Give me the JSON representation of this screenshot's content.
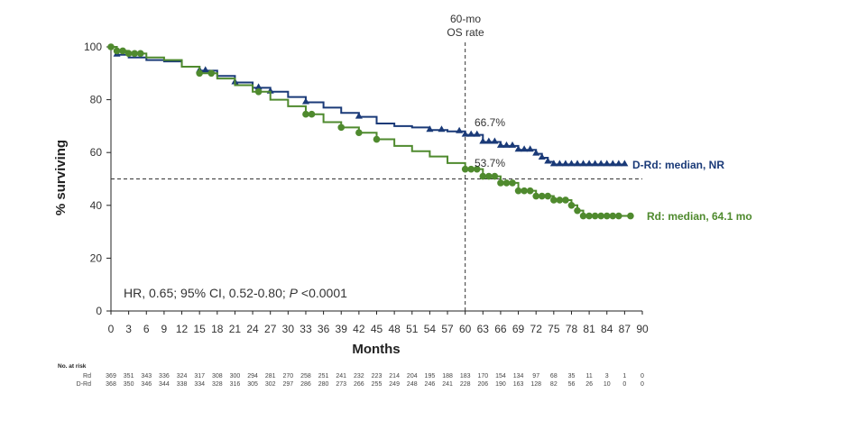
{
  "chart_data": {
    "type": "line",
    "xlabel": "Months",
    "ylabel": "% surviving",
    "xlim": [
      0,
      90
    ],
    "ylim": [
      0,
      100
    ],
    "xticks": [
      0,
      3,
      6,
      9,
      12,
      15,
      18,
      21,
      24,
      27,
      30,
      33,
      36,
      39,
      42,
      45,
      48,
      51,
      54,
      57,
      60,
      63,
      66,
      69,
      72,
      75,
      78,
      81,
      84,
      87,
      90
    ],
    "yticks": [
      0,
      20,
      40,
      60,
      80,
      100
    ],
    "legend": "right of curves",
    "reference_lines": {
      "horizontal_y": 50,
      "vertical_x": 60,
      "vertical_label_line1": "60-mo",
      "vertical_label_line2": "OS rate"
    },
    "annotations": {
      "drd_rate": "66.7%",
      "rd_rate": "53.7%",
      "hr_prefix": "HR, 0.65; 95% CI, 0.52-0.80; ",
      "hr_p": "P",
      "hr_suffix": " <0.0001"
    },
    "series": [
      {
        "name": "D-Rd: median, NR",
        "color": "#1a3a78",
        "marker": "triangle",
        "x": [
          0,
          1,
          3,
          6,
          9,
          12,
          15,
          18,
          21,
          24,
          27,
          30,
          33,
          36,
          39,
          42,
          45,
          48,
          51,
          54,
          57,
          60,
          63,
          66,
          69,
          72,
          73,
          74,
          75,
          78,
          81,
          84,
          87
        ],
        "y": [
          100,
          97,
          96,
          95,
          94.5,
          92.5,
          91,
          89,
          86.5,
          84.5,
          83,
          81,
          79,
          77,
          75,
          73.5,
          71,
          70,
          69.5,
          68.5,
          68,
          66.7,
          64,
          62.5,
          61,
          59.5,
          58,
          56.5,
          55.5,
          55.5,
          55.5,
          55.5,
          55.5
        ],
        "censor_x": [
          1,
          15,
          16,
          21,
          25,
          27,
          33,
          42,
          54,
          56,
          59,
          60,
          61,
          62,
          63,
          64,
          65,
          66,
          67,
          68,
          69,
          70,
          71,
          72,
          73,
          74,
          75,
          76,
          77,
          78,
          79,
          80,
          81,
          82,
          83,
          84,
          85,
          86,
          87
        ]
      },
      {
        "name": "Rd: median, 64.1 mo",
        "color": "#4f8a2e",
        "marker": "circle",
        "x": [
          0,
          1,
          3,
          6,
          9,
          12,
          15,
          18,
          21,
          24,
          27,
          30,
          33,
          36,
          39,
          42,
          45,
          48,
          51,
          54,
          57,
          60,
          63,
          66,
          69,
          72,
          75,
          78,
          79,
          80,
          81,
          84,
          87,
          88
        ],
        "y": [
          100,
          98.5,
          97.5,
          96,
          95,
          92.5,
          90,
          88,
          85.5,
          83,
          80,
          77.5,
          74.5,
          71.5,
          69.5,
          67.5,
          65,
          62.5,
          60.5,
          58.5,
          56,
          53.7,
          51,
          48.5,
          45.5,
          43.5,
          42,
          40,
          38,
          36,
          36,
          36,
          36,
          36
        ],
        "censor_x": [
          0,
          1,
          2,
          3,
          4,
          5,
          15,
          17,
          25,
          33,
          34,
          39,
          42,
          45,
          60,
          61,
          62,
          63,
          64,
          65,
          66,
          67,
          68,
          69,
          70,
          71,
          72,
          73,
          74,
          75,
          76,
          77,
          78,
          79,
          80,
          81,
          82,
          83,
          84,
          85,
          86,
          88
        ]
      }
    ],
    "risk_table": {
      "title": "No. at risk",
      "rows": [
        {
          "label": "Rd",
          "values": [
            "369",
            "351",
            "343",
            "336",
            "324",
            "317",
            "308",
            "300",
            "294",
            "281",
            "270",
            "258",
            "251",
            "241",
            "232",
            "223",
            "214",
            "204",
            "195",
            "188",
            "183",
            "170",
            "154",
            "134",
            "97",
            "68",
            "35",
            "11",
            "3",
            "1",
            "0"
          ]
        },
        {
          "label": "D-Rd",
          "values": [
            "368",
            "350",
            "346",
            "344",
            "338",
            "334",
            "328",
            "316",
            "305",
            "302",
            "297",
            "286",
            "280",
            "273",
            "266",
            "255",
            "249",
            "248",
            "246",
            "241",
            "228",
            "206",
            "190",
            "163",
            "128",
            "82",
            "56",
            "26",
            "10",
            "0",
            "0"
          ]
        }
      ]
    }
  }
}
